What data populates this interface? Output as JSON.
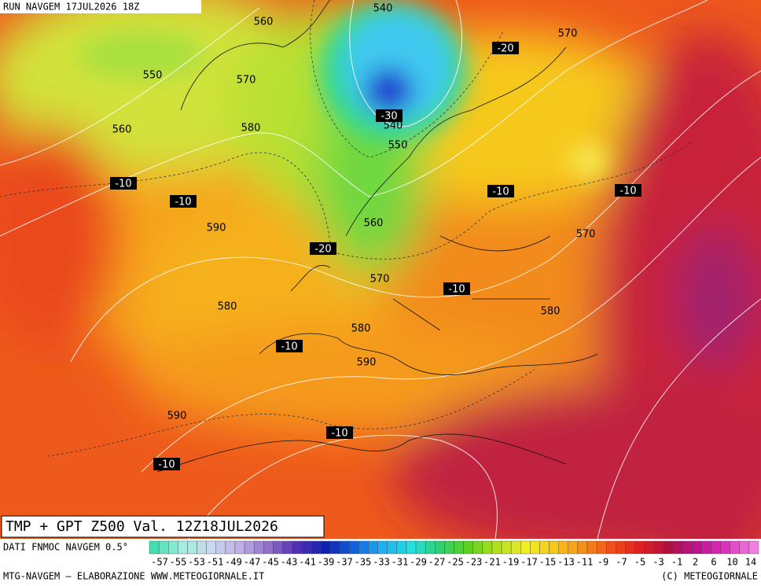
{
  "header": "RUN NAVGEM 17JUL2026 18Z",
  "map_labels": [
    "560",
    "540",
    "570",
    "-20",
    "550",
    "570",
    "-30",
    "540",
    "560",
    "580",
    "550",
    "-10",
    "-10",
    "-10",
    "-10",
    "590",
    "560",
    "570",
    "-20",
    "570",
    "-10",
    "580",
    "580",
    "580",
    "-10",
    "590",
    "590",
    "-10",
    "-10"
  ],
  "title": "TMP + GPT Z500 Val. 12Z18JUL2026",
  "legend": {
    "source": "DATI FNMOC NAVGEM 0.5°",
    "scale_labels": [
      "-57",
      "-55",
      "-53",
      "-51",
      "-49",
      "-47",
      "-45",
      "-43",
      "-41",
      "-39",
      "-37",
      "-35",
      "-33",
      "-31",
      "-29",
      "-27",
      "-25",
      "-23",
      "-21",
      "-19",
      "-17",
      "-15",
      "-13",
      "-11",
      "-9",
      "-7",
      "-5",
      "-3",
      "-1",
      "2",
      "6",
      "10",
      "14"
    ]
  },
  "footer": {
    "left": "MTG-NAVGEM – ELABORAZIONE WWW.METEOGIORNALE.IT",
    "right": "(C) METEOGIORNALE"
  }
}
